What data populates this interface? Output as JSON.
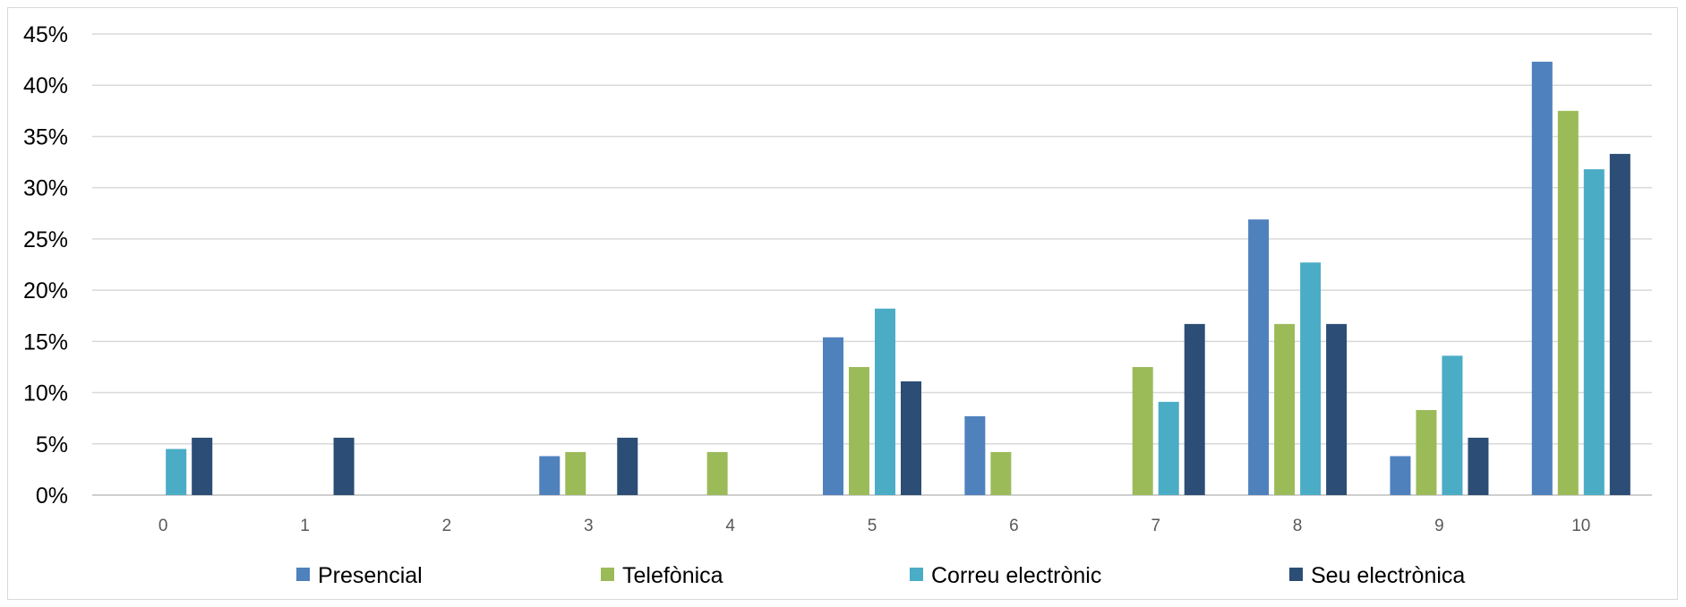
{
  "chart_data": {
    "type": "bar",
    "title": "",
    "xlabel": "",
    "ylabel": "",
    "categories": [
      "0",
      "1",
      "2",
      "3",
      "4",
      "5",
      "6",
      "7",
      "8",
      "9",
      "10"
    ],
    "ylim": [
      0,
      45
    ],
    "yticks": [
      "0%",
      "5%",
      "10%",
      "15%",
      "20%",
      "25%",
      "30%",
      "35%",
      "40%",
      "45%"
    ],
    "grid": true,
    "legend_position": "bottom",
    "series": [
      {
        "name": "Presencial",
        "color": "#4f81bd",
        "values": [
          0,
          0,
          0,
          3.8,
          0,
          15.4,
          7.7,
          0,
          26.9,
          3.8,
          42.3
        ]
      },
      {
        "name": "Telefònica",
        "color": "#9bbb59",
        "values": [
          0,
          0,
          0,
          4.2,
          4.2,
          12.5,
          4.2,
          12.5,
          16.7,
          8.3,
          37.5
        ]
      },
      {
        "name": "Correu electrònic",
        "color": "#4bacc6",
        "values": [
          4.5,
          0,
          0,
          0,
          0,
          18.2,
          0,
          9.1,
          22.7,
          13.6,
          31.8
        ]
      },
      {
        "name": "Seu electrònica",
        "color": "#2c4d75",
        "values": [
          5.6,
          5.6,
          0,
          5.6,
          0,
          11.1,
          0,
          16.7,
          16.7,
          5.6,
          33.3
        ]
      }
    ]
  }
}
